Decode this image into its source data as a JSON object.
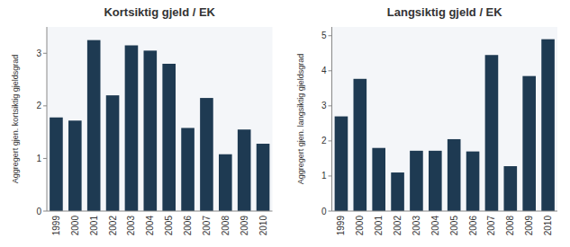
{
  "chart_data": [
    {
      "type": "bar",
      "title": "Kortsiktig gjeld / EK",
      "y_label": "Aggregert gjen. kortsiktig gjeldsgrad",
      "categories": [
        "1999",
        "2000",
        "2001",
        "2002",
        "2003",
        "2004",
        "2005",
        "2006",
        "2007",
        "2008",
        "2009",
        "2010"
      ],
      "values": [
        1.78,
        1.72,
        3.25,
        2.2,
        3.15,
        3.05,
        2.8,
        1.58,
        2.15,
        1.08,
        1.55,
        1.28
      ],
      "color": "#1e3a52",
      "ylim": [
        0,
        3.5
      ],
      "yticks": [
        0,
        1,
        2,
        3
      ],
      "grid": false
    },
    {
      "type": "bar",
      "title": "Langsiktig gjeld / EK",
      "y_label": "Aggregert gjen. langsiktig gjeldsgrad",
      "categories": [
        "1999",
        "2000",
        "2001",
        "2002",
        "2003",
        "2004",
        "2005",
        "2006",
        "2007",
        "2008",
        "2009",
        "2010"
      ],
      "values": [
        2.7,
        3.77,
        1.8,
        1.1,
        1.72,
        1.72,
        2.05,
        1.7,
        4.45,
        1.28,
        3.85,
        4.9
      ],
      "color": "#1e3a52",
      "ylim": [
        0,
        5.25
      ],
      "yticks": [
        0,
        1,
        2,
        3,
        4,
        5
      ],
      "grid": false
    }
  ]
}
